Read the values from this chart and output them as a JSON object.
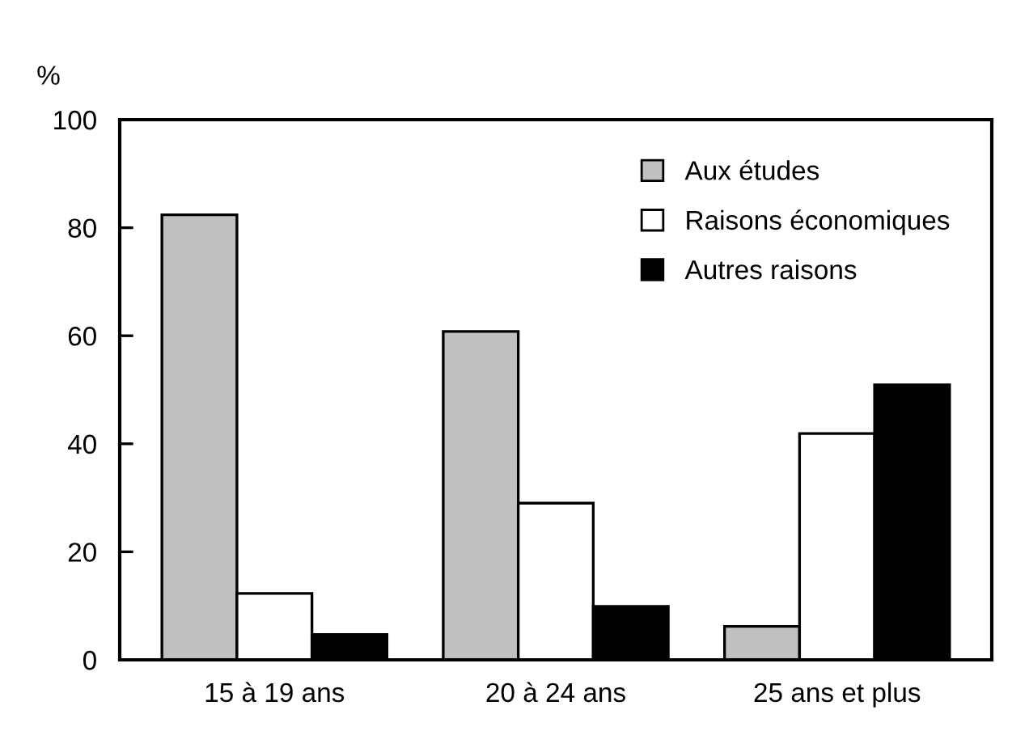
{
  "chart_data": {
    "type": "bar",
    "ylabel": "%",
    "categories": [
      "15 à 19 ans",
      "20 à 24 ans",
      "25 ans et plus"
    ],
    "series": [
      {
        "name": "Aux études",
        "color": "#c0c0c0",
        "values": [
          82.4,
          60.8,
          6.2
        ]
      },
      {
        "name": "Raisons économiques",
        "color": "#ffffff",
        "values": [
          12.3,
          29.0,
          41.9
        ]
      },
      {
        "name": "Autres raisons",
        "color": "#000000",
        "values": [
          4.7,
          9.9,
          50.9
        ]
      }
    ],
    "ylim": [
      0,
      100
    ],
    "yticks": [
      0,
      20,
      40,
      60,
      80,
      100
    ],
    "grid": false,
    "legend": "top right"
  }
}
